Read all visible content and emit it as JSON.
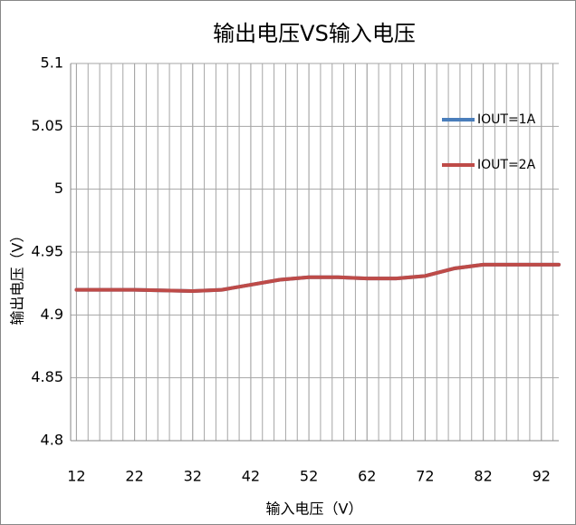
{
  "chart_data": {
    "type": "line",
    "title": "输出电压VS输入电压",
    "x_label": "输入电压（V）",
    "y_label": "输出电压（V）",
    "x": [
      12,
      22,
      32,
      37,
      42,
      47,
      52,
      57,
      62,
      67,
      72,
      77,
      82,
      87,
      92,
      95
    ],
    "series": [
      {
        "name": "IOUT=1A",
        "color": "#4a7ebb",
        "values": [
          4.92,
          4.92,
          4.919,
          4.92,
          4.924,
          4.928,
          4.93,
          4.93,
          4.929,
          4.929,
          4.931,
          4.937,
          4.94,
          4.94,
          4.94,
          4.94
        ]
      },
      {
        "name": "IOUT=2A",
        "color": "#be4b48",
        "values": [
          4.92,
          4.92,
          4.919,
          4.92,
          4.924,
          4.928,
          4.93,
          4.93,
          4.929,
          4.929,
          4.931,
          4.937,
          4.94,
          4.94,
          4.94,
          4.94
        ]
      }
    ],
    "xlim": [
      11,
      95
    ],
    "xticks": [
      12,
      22,
      32,
      42,
      52,
      62,
      72,
      82,
      92
    ],
    "ylim": [
      4.8,
      5.1
    ],
    "yticks": [
      {
        "value": 4.8,
        "label": "4.8"
      },
      4.85,
      {
        "value": 4.9,
        "label": "4.9"
      },
      4.95,
      5,
      5.05,
      {
        "value": 5.1,
        "label": "5.1"
      }
    ],
    "x_minor_grid": 2,
    "grid": true,
    "legend": "right"
  }
}
